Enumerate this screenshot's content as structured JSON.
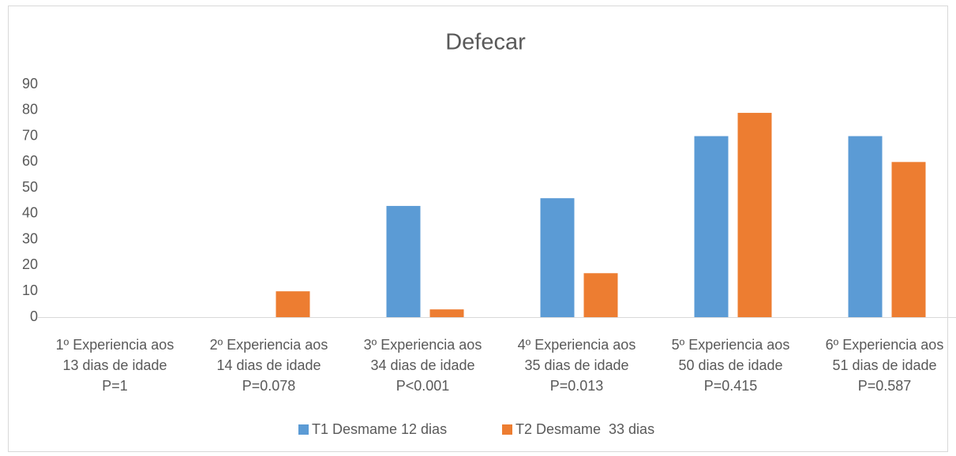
{
  "chart_data": {
    "type": "bar",
    "title": "Defecar",
    "categories": [
      [
        "1º Experiencia aos",
        "13 dias de idade",
        "P=1"
      ],
      [
        "2º Experiencia aos",
        "14 dias de idade",
        "P=0.078"
      ],
      [
        "3º Experiencia aos",
        "34 dias de idade",
        "P<0.001"
      ],
      [
        "4º Experiencia aos",
        "35 dias de idade",
        "P=0.013"
      ],
      [
        "5º Experiencia aos",
        "50 dias de idade",
        "P=0.415"
      ],
      [
        "6º Experiencia aos",
        "51 dias de idade",
        "P=0.587"
      ]
    ],
    "series": [
      {
        "name": "T1 Desmame 12 dias",
        "color": "#5b9bd5",
        "values": [
          0,
          0,
          43,
          46,
          70,
          70
        ]
      },
      {
        "name": "T2 Desmame  33 dias",
        "color": "#ed7d31",
        "values": [
          0,
          10,
          3,
          17,
          79,
          60
        ]
      }
    ],
    "ylim": [
      0,
      90
    ],
    "yticks": [
      0,
      10,
      20,
      30,
      40,
      50,
      60,
      70,
      80,
      90
    ],
    "grid": false,
    "legend": "bottom"
  }
}
